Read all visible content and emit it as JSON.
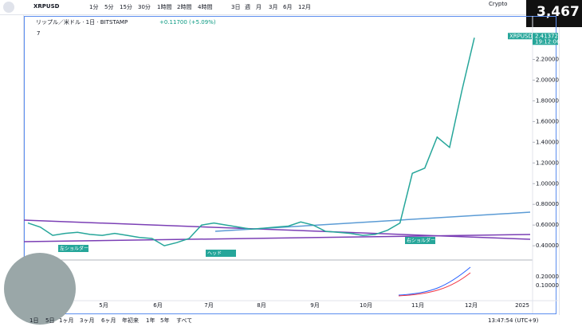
{
  "toolbar": {
    "symbol": "XRPUSD",
    "intervals": [
      "1分",
      "5分",
      "15分",
      "30分",
      "1時間",
      "2時間",
      "4時間",
      "3日",
      "週",
      "月",
      "3月",
      "6月",
      "12月"
    ],
    "crypto": "Crypto"
  },
  "viewers": {
    "count": "3,467"
  },
  "chart_data": {
    "type": "line",
    "title": "リップル／米ドル · 1日 · BITSTAMP",
    "change": "+0.11700 (+5.09%)",
    "indicator_count": "7",
    "color": "#26a69a",
    "values": [
      0.62,
      0.58,
      0.5,
      0.52,
      0.53,
      0.51,
      0.5,
      0.52,
      0.5,
      0.48,
      0.47,
      0.4,
      0.43,
      0.47,
      0.6,
      0.62,
      0.6,
      0.58,
      0.56,
      0.57,
      0.58,
      0.59,
      0.63,
      0.6,
      0.54,
      0.53,
      0.52,
      0.5,
      0.51,
      0.55,
      0.62,
      1.1,
      1.15,
      1.45,
      1.35,
      1.9,
      2.41
    ],
    "ylim": [
      0.27,
      2.62
    ],
    "yticks": [
      0.4,
      0.6,
      0.8,
      1,
      1.2,
      1.4,
      1.6,
      1.8,
      2,
      2.2
    ],
    "ytick_labels": [
      "0.40000",
      "0.60000",
      "0.80000",
      "1.00000",
      "1.20000",
      "1.40000",
      "1.60000",
      "1.80000",
      "2.00000",
      "2.20000"
    ],
    "last_tag": {
      "name": "XRPUSD",
      "price": "2.41372",
      "countdown": "19:12:06"
    },
    "lower_ytick_labels": [
      "0.20000",
      "0.10000"
    ],
    "months": [
      "5月",
      "6月",
      "7月",
      "8月",
      "9月",
      "10月",
      "11月",
      "12月",
      "2025"
    ],
    "annotations": [
      "左ショルダー",
      "ヘッド",
      "右ショルダー"
    ]
  },
  "footer": {
    "ranges": [
      "1日",
      "5日",
      "1ヶ月",
      "3ヶ月",
      "6ヶ月",
      "年初来",
      "1年",
      "5年",
      "すべて"
    ],
    "clock": "13:47:54 (UTC+9)"
  }
}
